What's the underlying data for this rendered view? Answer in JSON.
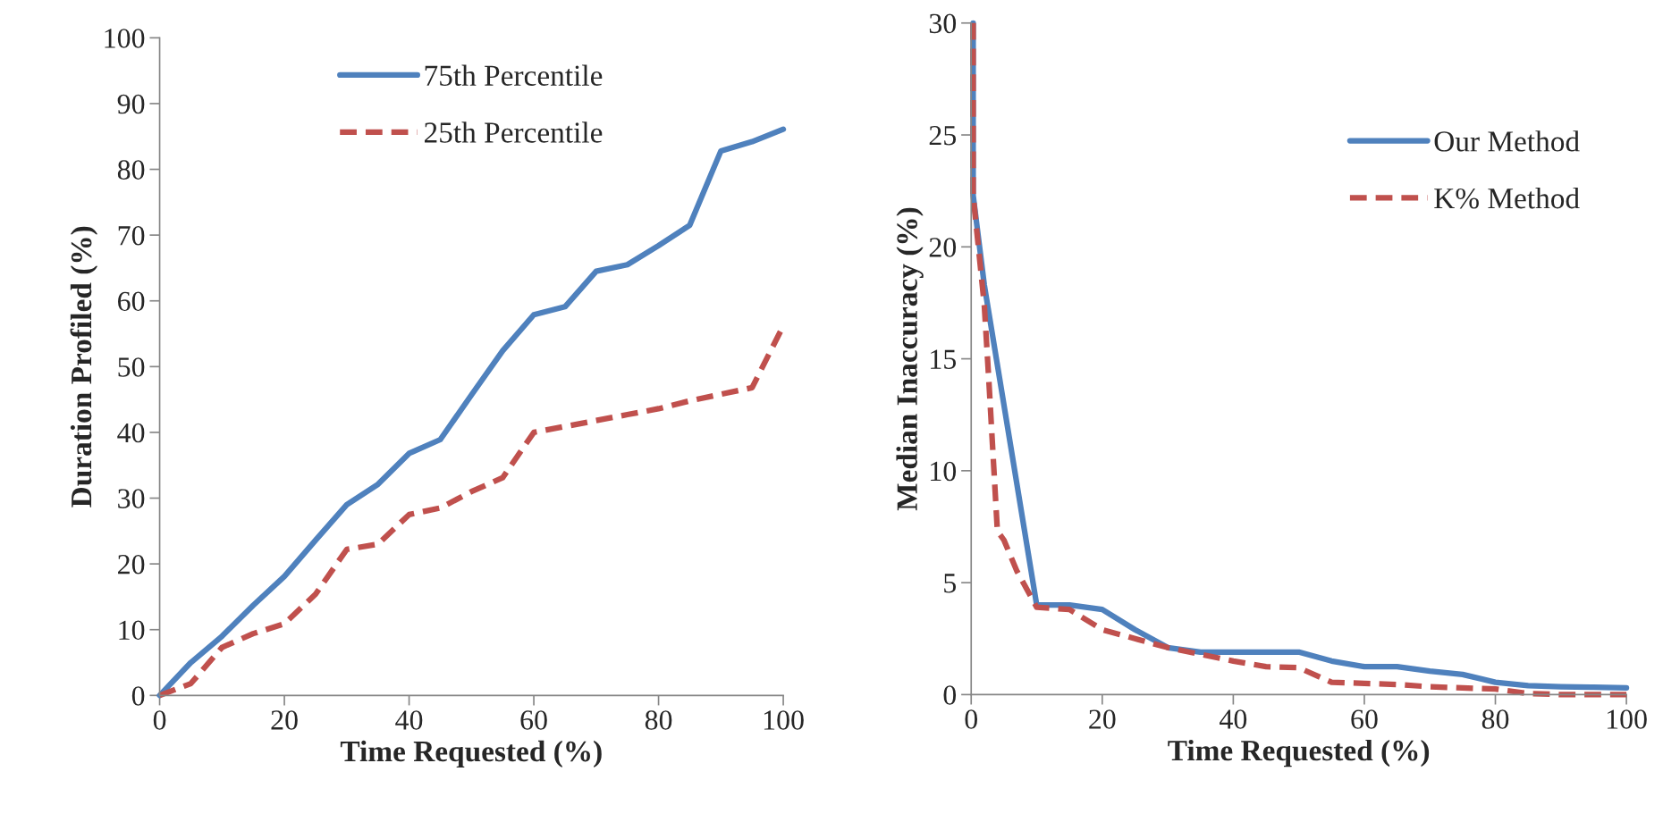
{
  "chart_data": [
    {
      "type": "line",
      "xlabel": "Time Requested (%)",
      "ylabel": "Duration Profiled (%)",
      "xlim": [
        0,
        100
      ],
      "ylim": [
        0,
        100
      ],
      "xticks": [
        0,
        20,
        40,
        60,
        80,
        100
      ],
      "yticks": [
        0,
        10,
        20,
        30,
        40,
        50,
        60,
        70,
        80,
        90,
        100
      ],
      "grid": false,
      "legend": "top",
      "marker": "none",
      "series": [
        {
          "name": "75th Percentile",
          "color": "#4f81bd",
          "line_style": "solid",
          "x": [
            0,
            5,
            10,
            15,
            20,
            25,
            30,
            35,
            40,
            45,
            50,
            55,
            60,
            65,
            70,
            75,
            80,
            85,
            90,
            95,
            100
          ],
          "values": [
            0,
            5.0,
            9.0,
            13.7,
            18.1,
            23.6,
            29.0,
            32.1,
            36.8,
            38.9,
            45.7,
            52.4,
            57.9,
            59.1,
            64.5,
            65.5,
            68.4,
            71.5,
            82.8,
            84.2,
            86.1
          ]
        },
        {
          "name": "25th Percentile",
          "color": "#c0504d",
          "line_style": "dashed",
          "x": [
            0,
            5,
            10,
            15,
            20,
            25,
            30,
            35,
            40,
            45,
            50,
            55,
            60,
            65,
            70,
            75,
            80,
            85,
            90,
            95,
            100
          ],
          "values": [
            0,
            1.8,
            7.3,
            9.4,
            10.9,
            15.4,
            22.2,
            23.0,
            27.5,
            28.5,
            31.0,
            33.1,
            40.0,
            40.9,
            41.8,
            42.7,
            43.6,
            44.8,
            45.8,
            46.8,
            56.2
          ]
        }
      ]
    },
    {
      "type": "line",
      "xlabel": "Time Requested (%)",
      "ylabel": "Median Inaccuracy (%)",
      "xlim": [
        0,
        100
      ],
      "ylim": [
        0,
        30
      ],
      "xticks": [
        0,
        20,
        40,
        60,
        80,
        100
      ],
      "yticks": [
        0,
        5,
        10,
        15,
        20,
        25,
        30
      ],
      "grid": false,
      "legend": "top right",
      "marker": "none",
      "series": [
        {
          "name": "Our Method",
          "color": "#4f81bd",
          "line_style": "solid",
          "x": [
            0.3,
            0.3,
            2,
            10,
            15,
            20,
            25,
            30,
            35,
            40,
            45,
            50,
            55,
            60,
            65,
            70,
            75,
            80,
            85,
            90,
            95,
            100
          ],
          "values": [
            30,
            22.3,
            18.3,
            4.0,
            4.0,
            3.8,
            2.9,
            2.1,
            1.9,
            1.9,
            1.9,
            1.9,
            1.5,
            1.25,
            1.25,
            1.05,
            0.9,
            0.55,
            0.4,
            0.35,
            0.33,
            0.3
          ]
        },
        {
          "name": "K% Method",
          "color": "#c0504d",
          "line_style": "dashed",
          "x": [
            0.3,
            0.3,
            2,
            2.7,
            4,
            5,
            7,
            10,
            15,
            20,
            25,
            30,
            35,
            40,
            45,
            50,
            55,
            60,
            65,
            70,
            75,
            80,
            85,
            90,
            95,
            100
          ],
          "values": [
            30,
            22.3,
            17.4,
            14.0,
            7.3,
            6.9,
            5.5,
            3.9,
            3.8,
            2.9,
            2.5,
            2.1,
            1.8,
            1.5,
            1.25,
            1.2,
            0.55,
            0.5,
            0.45,
            0.35,
            0.3,
            0.25,
            0.05,
            0,
            0,
            0
          ]
        }
      ]
    }
  ]
}
